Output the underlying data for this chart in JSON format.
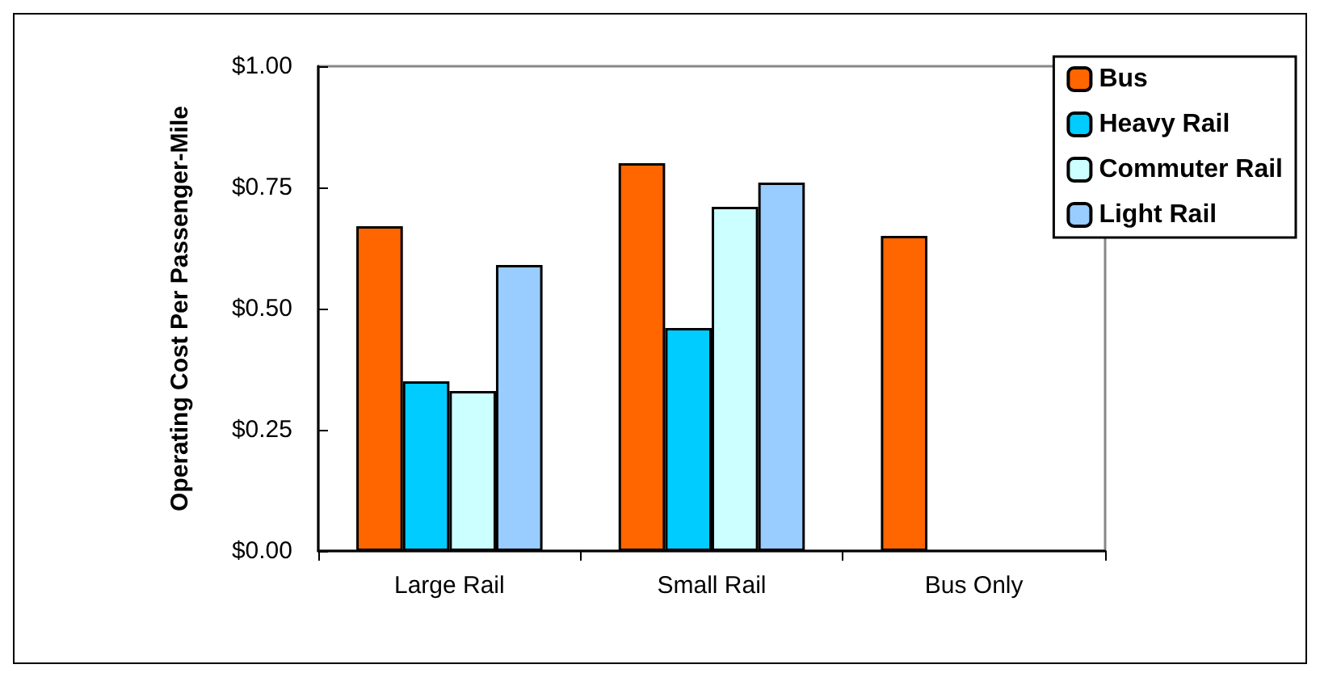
{
  "chart_data": {
    "type": "bar",
    "ylabel": "Operating Cost Per Passenger-Mile",
    "categories": [
      "Large Rail",
      "Small Rail",
      "Bus Only"
    ],
    "series": [
      {
        "name": "Bus",
        "color": "#ff6600",
        "values": [
          0.67,
          0.8,
          0.65
        ]
      },
      {
        "name": "Heavy Rail",
        "color": "#00ccff",
        "values": [
          0.35,
          0.46,
          null
        ]
      },
      {
        "name": "Commuter Rail",
        "color": "#ccffff",
        "values": [
          0.33,
          0.71,
          null
        ]
      },
      {
        "name": "Light Rail",
        "color": "#99ccff",
        "values": [
          0.59,
          0.76,
          null
        ]
      }
    ],
    "ylim": [
      0,
      1
    ],
    "yticks": [
      {
        "value": 0,
        "label": "$0.00"
      },
      {
        "value": 0.25,
        "label": "$0.25"
      },
      {
        "value": 0.5,
        "label": "$0.50"
      },
      {
        "value": 0.75,
        "label": "$0.75"
      },
      {
        "value": 1,
        "label": "$1.00"
      }
    ],
    "grid": false,
    "legend": "top right"
  }
}
